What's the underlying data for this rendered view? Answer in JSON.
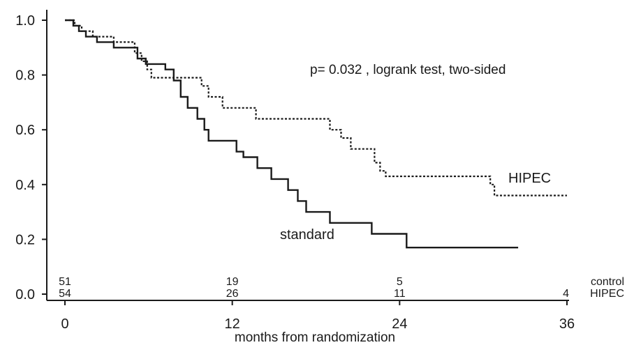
{
  "chart_data": {
    "type": "line",
    "title": "",
    "xlabel": "months from randomization",
    "ylabel": "",
    "xlim": [
      0,
      36
    ],
    "ylim": [
      0,
      1.0
    ],
    "x_ticks": [
      "0",
      "12",
      "24",
      "36"
    ],
    "y_ticks": [
      "0.0",
      "0.2",
      "0.4",
      "0.6",
      "0.8",
      "1.0"
    ],
    "annotation": "p= 0.032 , logrank test, two-sided",
    "series": [
      {
        "name": "standard",
        "line_style": "solid",
        "points": [
          [
            0,
            1.0
          ],
          [
            0.6,
            0.98
          ],
          [
            1.0,
            0.96
          ],
          [
            1.5,
            0.94
          ],
          [
            2.3,
            0.92
          ],
          [
            3.5,
            0.9
          ],
          [
            5.2,
            0.86
          ],
          [
            5.8,
            0.84
          ],
          [
            7.2,
            0.82
          ],
          [
            7.8,
            0.78
          ],
          [
            8.3,
            0.72
          ],
          [
            8.8,
            0.68
          ],
          [
            9.5,
            0.64
          ],
          [
            10.0,
            0.6
          ],
          [
            10.3,
            0.56
          ],
          [
            12.3,
            0.52
          ],
          [
            12.8,
            0.5
          ],
          [
            13.8,
            0.46
          ],
          [
            14.8,
            0.42
          ],
          [
            16.0,
            0.38
          ],
          [
            16.7,
            0.34
          ],
          [
            17.3,
            0.3
          ],
          [
            19.0,
            0.26
          ],
          [
            22.0,
            0.22
          ],
          [
            24.5,
            0.17
          ],
          [
            32.5,
            0.17
          ]
        ]
      },
      {
        "name": "HIPEC",
        "line_style": "dotted",
        "points": [
          [
            0,
            1.0
          ],
          [
            0.7,
            0.98
          ],
          [
            1.2,
            0.96
          ],
          [
            2.0,
            0.94
          ],
          [
            3.5,
            0.92
          ],
          [
            5.0,
            0.88
          ],
          [
            5.5,
            0.85
          ],
          [
            5.9,
            0.82
          ],
          [
            6.2,
            0.79
          ],
          [
            9.8,
            0.76
          ],
          [
            10.3,
            0.72
          ],
          [
            11.3,
            0.68
          ],
          [
            13.7,
            0.64
          ],
          [
            19.0,
            0.6
          ],
          [
            19.8,
            0.57
          ],
          [
            20.5,
            0.53
          ],
          [
            22.2,
            0.48
          ],
          [
            22.6,
            0.45
          ],
          [
            23.0,
            0.43
          ],
          [
            30.5,
            0.4
          ],
          [
            30.8,
            0.36
          ],
          [
            36.0,
            0.36
          ]
        ]
      }
    ],
    "risk_table": {
      "rows": [
        {
          "label": "control",
          "at_month": [
            0,
            12,
            24
          ],
          "values": [
            "51",
            "19",
            "5"
          ]
        },
        {
          "label": "HIPEC",
          "at_month": [
            0,
            12,
            24,
            36
          ],
          "values": [
            "54",
            "26",
            "11",
            "4"
          ]
        }
      ]
    }
  }
}
